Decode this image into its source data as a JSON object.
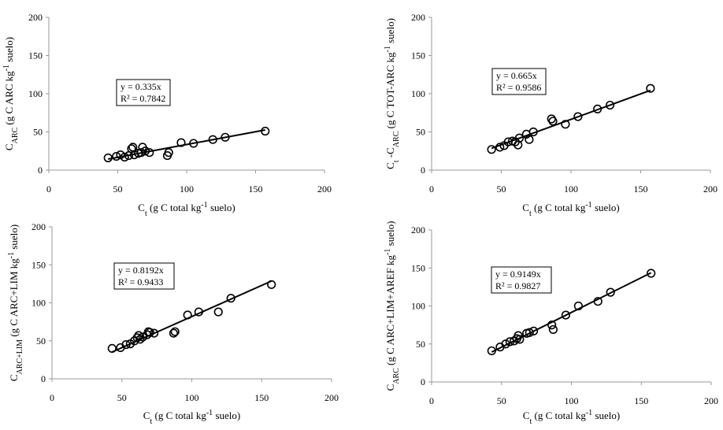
{
  "chart_data": [
    {
      "type": "scatter",
      "id": "panel-a",
      "xlim": [
        0,
        200
      ],
      "ylim": [
        0,
        200
      ],
      "xticks": [
        "0",
        "50",
        "100",
        "150",
        "200"
      ],
      "yticks": [
        "0",
        "50",
        "100",
        "150",
        "200"
      ],
      "xlabel": {
        "main": "C",
        "sub": "t",
        "rest": " (g C total kg",
        "sup": "-1",
        "tail": " suelo)"
      },
      "ylabel": {
        "main": "C",
        "sub": "ARC",
        "rest": " (g C ARC kg",
        "sup": "-1",
        "tail": " suelo)"
      },
      "equation": "y = 0.335x",
      "r2": "R² = 0.7842",
      "slope": 0.335,
      "points": [
        [
          43,
          16
        ],
        [
          49,
          18
        ],
        [
          52,
          20
        ],
        [
          55,
          17
        ],
        [
          58,
          19
        ],
        [
          60,
          28
        ],
        [
          61,
          30
        ],
        [
          62,
          20
        ],
        [
          65,
          22
        ],
        [
          67,
          23
        ],
        [
          68,
          30
        ],
        [
          70,
          25
        ],
        [
          73,
          23
        ],
        [
          86,
          19
        ],
        [
          87,
          23
        ],
        [
          96,
          36
        ],
        [
          105,
          35
        ],
        [
          119,
          40
        ],
        [
          128,
          43
        ],
        [
          157,
          51
        ]
      ]
    },
    {
      "type": "scatter",
      "id": "panel-b",
      "xlim": [
        0,
        200
      ],
      "ylim": [
        0,
        200
      ],
      "xticks": [
        "0",
        "50",
        "100",
        "150",
        "200"
      ],
      "yticks": [
        "0",
        "50",
        "100",
        "150",
        "200"
      ],
      "xlabel": {
        "main": "C",
        "sub": "t",
        "rest": " (g C total kg",
        "sup": "-1",
        "tail": " suelo)"
      },
      "ylabel": {
        "main": "C",
        "sub": "t",
        "rest": " -C",
        "sub2": "ARC",
        "rest2": " (g C TOT-ARC kg",
        "sup": "-1",
        "tail": " suelo)"
      },
      "equation": "y = 0.665x",
      "r2": "R² = 0.9586",
      "slope": 0.665,
      "points": [
        [
          43,
          27
        ],
        [
          49,
          30
        ],
        [
          52,
          32
        ],
        [
          55,
          37
        ],
        [
          58,
          38
        ],
        [
          60,
          37
        ],
        [
          62,
          33
        ],
        [
          63,
          42
        ],
        [
          68,
          47
        ],
        [
          70,
          40
        ],
        [
          73,
          50
        ],
        [
          86,
          67
        ],
        [
          87,
          64
        ],
        [
          96,
          60
        ],
        [
          105,
          70
        ],
        [
          119,
          80
        ],
        [
          128,
          85
        ],
        [
          157,
          107
        ]
      ]
    },
    {
      "type": "scatter",
      "id": "panel-c",
      "xlim": [
        0,
        200
      ],
      "ylim": [
        0,
        200
      ],
      "xticks": [
        "0",
        "50",
        "100",
        "150",
        "200"
      ],
      "yticks": [
        "0",
        "50",
        "100",
        "150",
        "200"
      ],
      "xlabel": {
        "main": "C",
        "sub": "t",
        "rest": " (g C total kg",
        "sup": "-1",
        "tail": " suelo)"
      },
      "ylabel": {
        "main": "C",
        "sub": "ARC+LIM",
        "rest": " (g C ARC+LIM kg",
        "sup": "-1",
        "tail": " suelo)"
      },
      "equation": "y = 0.8192x",
      "r2": "R² = 0.9433",
      "slope": 0.8192,
      "points": [
        [
          43,
          40
        ],
        [
          49,
          41
        ],
        [
          53,
          45
        ],
        [
          56,
          46
        ],
        [
          59,
          50
        ],
        [
          61,
          54
        ],
        [
          62,
          57
        ],
        [
          63,
          52
        ],
        [
          65,
          55
        ],
        [
          68,
          58
        ],
        [
          69,
          62
        ],
        [
          70,
          61
        ],
        [
          73,
          60
        ],
        [
          87,
          60
        ],
        [
          88,
          62
        ],
        [
          97,
          84
        ],
        [
          105,
          88
        ],
        [
          119,
          88
        ],
        [
          128,
          106
        ],
        [
          157,
          124
        ]
      ]
    },
    {
      "type": "scatter",
      "id": "panel-d",
      "xlim": [
        0,
        200
      ],
      "ylim": [
        0,
        200
      ],
      "xticks": [
        "0",
        "50",
        "100",
        "150",
        "200"
      ],
      "yticks": [
        "0",
        "50",
        "100",
        "150",
        "200"
      ],
      "xlabel": {
        "main": "C",
        "sub": "t",
        "rest": " (g C total kg",
        "sup": "-1",
        "tail": " suelo)"
      },
      "ylabel": {
        "main": "C",
        "sub": "ARC",
        "rest": " (g C ARC+LIM+AREF kg",
        "sup": "-1",
        "tail": " suelo)"
      },
      "equation": "y = 0.9149x",
      "r2": "R² = 0.9827",
      "slope": 0.9149,
      "points": [
        [
          43,
          41
        ],
        [
          49,
          46
        ],
        [
          53,
          50
        ],
        [
          56,
          53
        ],
        [
          59,
          54
        ],
        [
          61,
          57
        ],
        [
          62,
          61
        ],
        [
          63,
          56
        ],
        [
          68,
          64
        ],
        [
          70,
          65
        ],
        [
          73,
          67
        ],
        [
          86,
          75
        ],
        [
          87,
          69
        ],
        [
          96,
          88
        ],
        [
          105,
          100
        ],
        [
          119,
          106
        ],
        [
          128,
          118
        ],
        [
          157,
          143
        ]
      ]
    }
  ]
}
